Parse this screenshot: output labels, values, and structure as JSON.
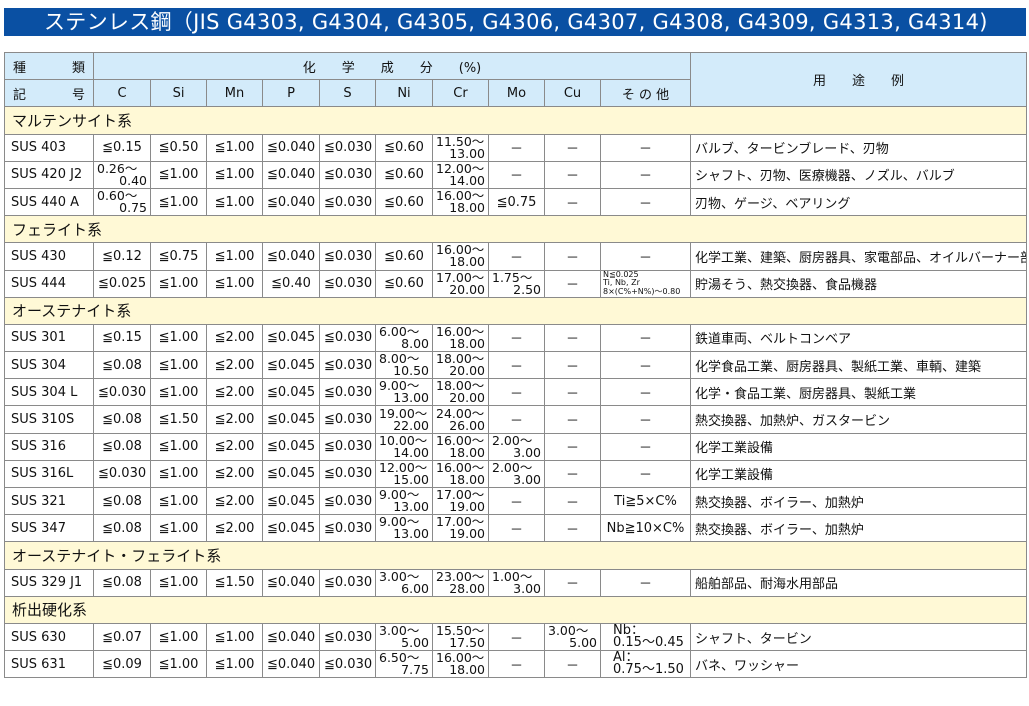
{
  "title": "ステンレス鋼（JIS G4303, G4304, G4305, G4306, G4307, G4308, G4309, G4313, G4314)",
  "header": {
    "kind_top": [
      "種",
      "類"
    ],
    "kind_bottom": [
      "記",
      "号"
    ],
    "chem": "化　　学　　成　　分　　(%)",
    "use": "用　　途　　例",
    "columns": [
      "C",
      "Si",
      "Mn",
      "P",
      "S",
      "Ni",
      "Cr",
      "Mo",
      "Cu",
      "そ の 他"
    ]
  },
  "sections": [
    {
      "name": "マルテンサイト系",
      "rows": [
        [
          "SUS 403",
          "≦0.15",
          "≦0.50",
          "≦1.00",
          "≦0.040",
          "≦0.030",
          "≦0.60",
          [
            "11.50～",
            "13.00"
          ],
          "－",
          "－",
          "－",
          "バルブ、タービンブレード、刃物"
        ],
        [
          "SUS 420 J2",
          [
            "0.26～",
            "0.40"
          ],
          "≦1.00",
          "≦1.00",
          "≦0.040",
          "≦0.030",
          "≦0.60",
          [
            "12.00～",
            "14.00"
          ],
          "－",
          "－",
          "－",
          "シャフト、刃物、医療機器、ノズル、バルブ"
        ],
        [
          "SUS 440 A",
          [
            "0.60～",
            "0.75"
          ],
          "≦1.00",
          "≦1.00",
          "≦0.040",
          "≦0.030",
          "≦0.60",
          [
            "16.00～",
            "18.00"
          ],
          "≦0.75",
          "－",
          "－",
          "刃物、ゲージ、ベアリング"
        ]
      ]
    },
    {
      "name": "フェライト系",
      "rows": [
        [
          "SUS 430",
          "≦0.12",
          "≦0.75",
          "≦1.00",
          "≦0.040",
          "≦0.030",
          "≦0.60",
          [
            "16.00～",
            "18.00"
          ],
          "－",
          "－",
          "－",
          "化学工業、建築、厨房器具、家電部品、オイルバーナー部品"
        ],
        [
          "SUS 444",
          "≦0.025",
          "≦1.00",
          "≦1.00",
          "≦0.40",
          "≦0.030",
          "≦0.60",
          [
            "17.00～",
            "20.00"
          ],
          [
            "1.75～",
            "2.50"
          ],
          "－",
          [
            "N≦0.025",
            "Ti, Nb, Zr",
            "8×(C%+N%)～0.80"
          ],
          "貯湯そう、熱交換器、食品機器"
        ]
      ]
    },
    {
      "name": "オーステナイト系",
      "rows": [
        [
          "SUS 301",
          "≦0.15",
          "≦1.00",
          "≦2.00",
          "≦0.045",
          "≦0.030",
          [
            "6.00～",
            "8.00"
          ],
          [
            "16.00～",
            "18.00"
          ],
          "－",
          "－",
          "－",
          "鉄道車両、ベルトコンベア"
        ],
        [
          "SUS 304",
          "≦0.08",
          "≦1.00",
          "≦2.00",
          "≦0.045",
          "≦0.030",
          [
            "8.00～",
            "10.50"
          ],
          [
            "18.00～",
            "20.00"
          ],
          "－",
          "－",
          "－",
          "化学食品工業、厨房器具、製紙工業、車輌、建築"
        ],
        [
          "SUS 304 L",
          "≦0.030",
          "≦1.00",
          "≦2.00",
          "≦0.045",
          "≦0.030",
          [
            "9.00～",
            "13.00"
          ],
          [
            "18.00～",
            "20.00"
          ],
          "－",
          "－",
          "－",
          "化学・食品工業、厨房器具、製紙工業"
        ],
        [
          "SUS 310S",
          "≦0.08",
          "≦1.50",
          "≦2.00",
          "≦0.045",
          "≦0.030",
          [
            "19.00～",
            "22.00"
          ],
          [
            "24.00～",
            "26.00"
          ],
          "－",
          "－",
          "－",
          "熱交換器、加熱炉、ガスタービン"
        ],
        [
          "SUS 316",
          "≦0.08",
          "≦1.00",
          "≦2.00",
          "≦0.045",
          "≦0.030",
          [
            "10.00～",
            "14.00"
          ],
          [
            "16.00～",
            "18.00"
          ],
          [
            "2.00～",
            "3.00"
          ],
          "－",
          "－",
          "化学工業設備"
        ],
        [
          "SUS 316L",
          "≦0.030",
          "≦1.00",
          "≦2.00",
          "≦0.045",
          "≦0.030",
          [
            "12.00～",
            "15.00"
          ],
          [
            "16.00～",
            "18.00"
          ],
          [
            "2.00～",
            "3.00"
          ],
          "－",
          "－",
          "化学工業設備"
        ],
        [
          "SUS 321",
          "≦0.08",
          "≦1.00",
          "≦2.00",
          "≦0.045",
          "≦0.030",
          [
            "9.00～",
            "13.00"
          ],
          [
            "17.00～",
            "19.00"
          ],
          "－",
          "－",
          "Ti≧5×C%",
          "熱交換器、ボイラー、加熱炉"
        ],
        [
          "SUS 347",
          "≦0.08",
          "≦1.00",
          "≦2.00",
          "≦0.045",
          "≦0.030",
          [
            "9.00～",
            "13.00"
          ],
          [
            "17.00～",
            "19.00"
          ],
          "－",
          "－",
          "Nb≧10×C%",
          "熱交換器、ボイラー、加熱炉"
        ]
      ]
    },
    {
      "name": "オーステナイト・フェライト系",
      "rows": [
        [
          "SUS 329 J1",
          "≦0.08",
          "≦1.00",
          "≦1.50",
          "≦0.040",
          "≦0.030",
          [
            "3.00～",
            "6.00"
          ],
          [
            "23.00～",
            "28.00"
          ],
          [
            "1.00～",
            "3.00"
          ],
          "－",
          "－",
          "船舶部品、耐海水用部品"
        ]
      ]
    },
    {
      "name": "析出硬化系",
      "rows": [
        [
          "SUS 630",
          "≦0.07",
          "≦1.00",
          "≦1.00",
          "≦0.040",
          "≦0.030",
          [
            "3.00～",
            "5.00"
          ],
          [
            "15.50～",
            "17.50"
          ],
          "－",
          [
            "3.00～",
            "5.00"
          ],
          [
            "Nb：",
            "0.15～0.45"
          ],
          "シャフト、タービン"
        ],
        [
          "SUS 631",
          "≦0.09",
          "≦1.00",
          "≦1.00",
          "≦0.040",
          "≦0.030",
          [
            "6.50～",
            "7.75"
          ],
          [
            "16.00～",
            "18.00"
          ],
          "－",
          "－",
          [
            "Al：",
            "0.75～1.50"
          ],
          "バネ、ワッシャー"
        ]
      ]
    }
  ]
}
